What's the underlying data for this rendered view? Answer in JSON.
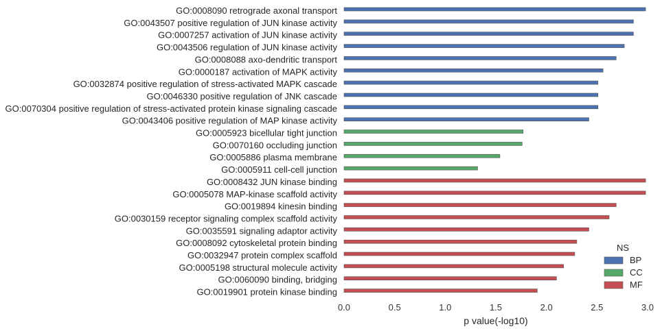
{
  "chart_data": {
    "type": "bar",
    "orientation": "horizontal",
    "xlabel": "p value(-log10)",
    "xlim": [
      0,
      3.0
    ],
    "xticks": [
      "0.0",
      "0.5",
      "1.0",
      "1.5",
      "2.0",
      "2.5",
      "3.0"
    ],
    "grid": false,
    "legend": {
      "title": "NS",
      "placement": "bottom-right"
    },
    "series": [
      {
        "name": "BP",
        "color": "#4c72b0"
      },
      {
        "name": "CC",
        "color": "#55a868"
      },
      {
        "name": "MF",
        "color": "#c44e52"
      }
    ],
    "bars": [
      {
        "label": "GO:0008090 retrograde axonal transport",
        "value": 2.98,
        "ns": "BP"
      },
      {
        "label": "GO:0043507 positive regulation of JUN kinase activity",
        "value": 2.86,
        "ns": "BP"
      },
      {
        "label": "GO:0007257 activation of JUN kinase activity",
        "value": 2.86,
        "ns": "BP"
      },
      {
        "label": "GO:0043506 regulation of JUN kinase activity",
        "value": 2.77,
        "ns": "BP"
      },
      {
        "label": "GO:0008088 axo-dendritic transport",
        "value": 2.69,
        "ns": "BP"
      },
      {
        "label": "GO:0000187 activation of MAPK activity",
        "value": 2.56,
        "ns": "BP"
      },
      {
        "label": "GO:0032874 positive regulation of stress-activated MAPK cascade",
        "value": 2.51,
        "ns": "BP"
      },
      {
        "label": "GO:0046330 positive regulation of JNK cascade",
        "value": 2.51,
        "ns": "BP"
      },
      {
        "label": "GO:0070304 positive regulation of stress-activated protein kinase signaling cascade",
        "value": 2.51,
        "ns": "BP"
      },
      {
        "label": "GO:0043406 positive regulation of MAP kinase activity",
        "value": 2.42,
        "ns": "BP"
      },
      {
        "label": "GO:0005923 bicellular tight junction",
        "value": 1.77,
        "ns": "CC"
      },
      {
        "label": "GO:0070160 occluding junction",
        "value": 1.76,
        "ns": "CC"
      },
      {
        "label": "GO:0005886 plasma membrane",
        "value": 1.54,
        "ns": "CC"
      },
      {
        "label": "GO:0005911 cell-cell junction",
        "value": 1.32,
        "ns": "CC"
      },
      {
        "label": "GO:0008432 JUN kinase binding",
        "value": 2.98,
        "ns": "MF"
      },
      {
        "label": "GO:0005078 MAP-kinase scaffold activity",
        "value": 2.98,
        "ns": "MF"
      },
      {
        "label": "GO:0019894 kinesin binding",
        "value": 2.69,
        "ns": "MF"
      },
      {
        "label": "GO:0030159 receptor signaling complex scaffold activity",
        "value": 2.62,
        "ns": "MF"
      },
      {
        "label": "GO:0035591 signaling adaptor activity",
        "value": 2.42,
        "ns": "MF"
      },
      {
        "label": "GO:0008092 cytoskeletal protein binding",
        "value": 2.3,
        "ns": "MF"
      },
      {
        "label": "GO:0032947 protein complex scaffold",
        "value": 2.28,
        "ns": "MF"
      },
      {
        "label": "GO:0005198 structural molecule activity",
        "value": 2.17,
        "ns": "MF"
      },
      {
        "label": "GO:0060090 binding, bridging",
        "value": 2.1,
        "ns": "MF"
      },
      {
        "label": "GO:0019901 protein kinase binding",
        "value": 1.91,
        "ns": "MF"
      }
    ]
  }
}
